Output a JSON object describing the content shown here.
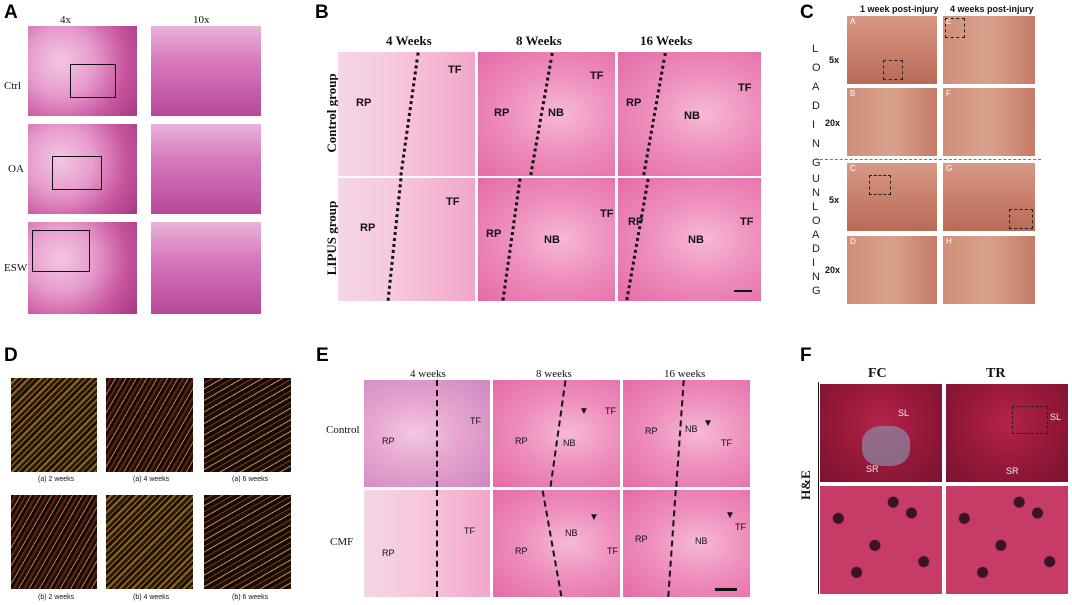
{
  "panels": {
    "A": {
      "letter": "A",
      "col1": "4x",
      "col2": "10x",
      "rows": [
        "Ctrl",
        "OA",
        "ESW"
      ]
    },
    "B": {
      "letter": "B",
      "cols": [
        "4 Weeks",
        "8 Weeks",
        "16 Weeks"
      ],
      "rows": [
        "Control group",
        "LIPUS group"
      ],
      "labels": {
        "rp": "RP",
        "tf": "TF",
        "nb": "NB"
      }
    },
    "C": {
      "letter": "C",
      "col1": "1 week post-injury",
      "col2": "4 weeks post-injury",
      "group1": "LOADING",
      "group2": "UNLOADING",
      "mag1": "5x",
      "mag2": "20x",
      "tiles": [
        "A",
        "E",
        "B",
        "F",
        "C",
        "G",
        "D",
        "H"
      ]
    },
    "D": {
      "letter": "D",
      "captions": [
        "(a) 2 weeks",
        "(a) 4 weeks",
        "(a) 6 weeks",
        "(b) 2 weeks",
        "(b) 4 weeks",
        "(b) 6 weeks"
      ]
    },
    "E": {
      "letter": "E",
      "cols": [
        "4 weeks",
        "8 weeks",
        "16 weeks"
      ],
      "rows": [
        "Control",
        "CMF"
      ],
      "labels": {
        "rp": "RP",
        "tf": "TF",
        "nb": "NB"
      }
    },
    "F": {
      "letter": "F",
      "cols": [
        "FC",
        "TR"
      ],
      "row": "H&E",
      "labels": {
        "sl": "SL",
        "sr": "SR"
      }
    }
  }
}
